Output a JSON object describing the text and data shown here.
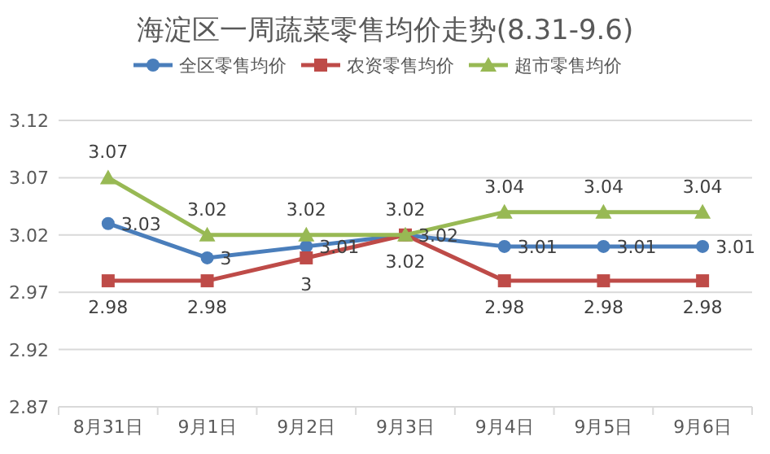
{
  "chart_data": {
    "type": "line",
    "title": "海淀区一周蔬菜零售均价走势(8.31-9.6)",
    "categories": [
      "8月31日",
      "9月1日",
      "9月2日",
      "9月3日",
      "9月4日",
      "9月5日",
      "9月6日"
    ],
    "series": [
      {
        "name": "全区零售均价",
        "color": "#4a7ebb",
        "marker": "circle",
        "values": [
          3.03,
          3,
          3.01,
          3.02,
          3.01,
          3.01,
          3.01
        ]
      },
      {
        "name": "农资零售均价",
        "color": "#be4b48",
        "marker": "square",
        "values": [
          2.98,
          2.98,
          3,
          3.02,
          2.98,
          2.98,
          2.98
        ]
      },
      {
        "name": "超市零售均价",
        "color": "#98b954",
        "marker": "triangle",
        "values": [
          3.07,
          3.02,
          3.02,
          3.02,
          3.04,
          3.04,
          3.04
        ]
      }
    ],
    "ylim": [
      2.87,
      3.12
    ],
    "yticks": [
      2.87,
      2.92,
      2.97,
      3.02,
      3.07,
      3.12
    ],
    "grid": "y",
    "legend": "top",
    "data_labels": true,
    "line_style": "solid"
  }
}
